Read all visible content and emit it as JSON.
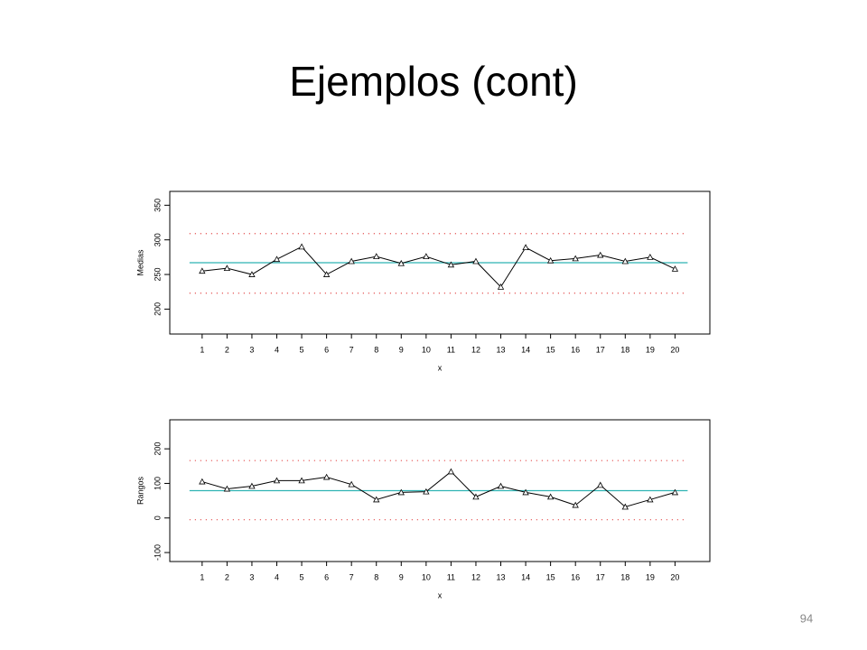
{
  "slide_title": "Ejemplos (cont)",
  "page_number": "94",
  "chart_data": [
    {
      "type": "line",
      "ylabel": "Medias",
      "xlabel": "x",
      "x": [
        1,
        2,
        3,
        4,
        5,
        6,
        7,
        8,
        9,
        10,
        11,
        12,
        13,
        14,
        15,
        16,
        17,
        18,
        19,
        20
      ],
      "values": [
        255,
        259,
        250,
        272,
        290,
        250,
        269,
        276,
        266,
        276,
        264,
        269,
        232,
        289,
        270,
        273,
        278,
        269,
        275,
        258
      ],
      "color": "#000000",
      "center_line": 267,
      "ucl": 309,
      "lcl": 223,
      "center_color": "#2fb3b3",
      "limit_color": "#e03030",
      "xlim": [
        -0.3,
        21.4
      ],
      "xticks": [
        1,
        2,
        3,
        4,
        5,
        6,
        7,
        8,
        9,
        10,
        11,
        12,
        13,
        14,
        15,
        16,
        17,
        18,
        19,
        20
      ],
      "ylim": [
        164,
        370
      ],
      "yticks": [
        200,
        250,
        300,
        350
      ]
    },
    {
      "type": "line",
      "ylabel": "Rangos",
      "xlabel": "x",
      "x": [
        1,
        2,
        3,
        4,
        5,
        6,
        7,
        8,
        9,
        10,
        11,
        12,
        13,
        14,
        15,
        16,
        17,
        18,
        19,
        20
      ],
      "values": [
        105,
        84,
        92,
        108,
        108,
        118,
        97,
        53,
        74,
        76,
        134,
        61,
        92,
        74,
        61,
        37,
        95,
        32,
        53,
        74
      ],
      "color": "#000000",
      "center_line": 79,
      "ucl": 166,
      "lcl": -5,
      "center_color": "#2fb3b3",
      "limit_color": "#e03030",
      "xlim": [
        -0.3,
        21.4
      ],
      "xticks": [
        1,
        2,
        3,
        4,
        5,
        6,
        7,
        8,
        9,
        10,
        11,
        12,
        13,
        14,
        15,
        16,
        17,
        18,
        19,
        20
      ],
      "ylim": [
        -126,
        284
      ],
      "yticks": [
        -100,
        0,
        100,
        200
      ]
    }
  ]
}
